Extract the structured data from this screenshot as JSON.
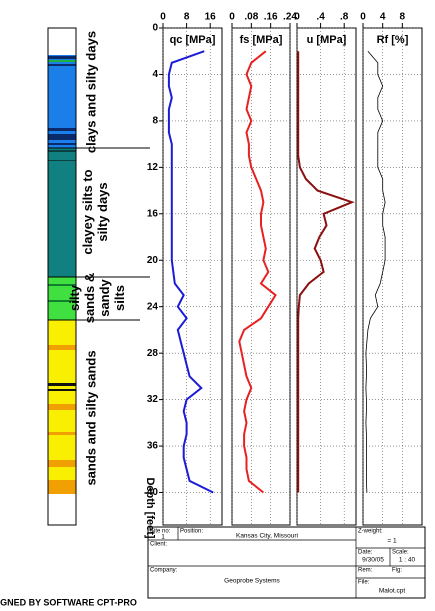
{
  "chart_data": {
    "type": "line",
    "depth_label": "Depth [feet]",
    "depth": [
      2,
      3,
      4,
      5,
      6,
      7,
      8,
      9,
      10,
      11,
      12,
      13,
      14,
      15,
      16,
      17,
      18,
      19,
      20,
      21,
      22,
      23,
      24,
      25,
      26,
      27,
      28,
      29,
      30,
      31,
      32,
      33,
      34,
      35,
      36,
      37,
      38,
      39,
      40
    ],
    "ylim": [
      0,
      42.8
    ],
    "yticks": [
      0,
      4,
      8,
      12,
      16,
      20,
      24,
      28,
      32,
      36,
      40
    ],
    "grid": true,
    "panels": [
      {
        "title": "qc [MPa]",
        "color": "#1c1cd8",
        "xlim": [
          0,
          20
        ],
        "xticks": [
          0,
          8,
          16
        ],
        "values": [
          14,
          3,
          2,
          2,
          3,
          2,
          2,
          2,
          3,
          3,
          3,
          3,
          3,
          3,
          3,
          3,
          3,
          3,
          3,
          3.5,
          4,
          7,
          5,
          8,
          5,
          6,
          7,
          8,
          9,
          13,
          8,
          7,
          8,
          8,
          7,
          7,
          8,
          9,
          17
        ]
      },
      {
        "title": "fs [MPa]",
        "color": "#e82020",
        "xlim": [
          0,
          0.24
        ],
        "xticks": [
          0,
          {
            "value": 0.08,
            "label": ".08"
          },
          {
            "value": 0.16,
            "label": ".16"
          },
          {
            "value": 0.24,
            "label": ".24"
          }
        ],
        "values": [
          0.14,
          0.08,
          0.06,
          0.08,
          0.07,
          0.06,
          0.08,
          0.06,
          0.07,
          0.07,
          0.08,
          0.1,
          0.12,
          0.13,
          0.12,
          0.12,
          0.13,
          0.14,
          0.13,
          0.15,
          0.12,
          0.18,
          0.15,
          0.12,
          0.05,
          0.03,
          0.04,
          0.05,
          0.06,
          0.08,
          0.06,
          0.05,
          0.06,
          0.05,
          0.05,
          0.06,
          0.06,
          0.07,
          0.13
        ]
      },
      {
        "title": "u [MPa]",
        "color": "#8b1010",
        "xlim": [
          0,
          1
        ],
        "xticks": [
          0,
          {
            "value": 0.4,
            "label": ".4"
          },
          {
            "value": 0.8,
            "label": ".8"
          }
        ],
        "values": [
          0.02,
          0.02,
          0.02,
          0.02,
          0.02,
          0.02,
          0.02,
          0.02,
          0.02,
          0.02,
          0.05,
          0.15,
          0.35,
          0.93,
          0.45,
          0.5,
          0.38,
          0.3,
          0.4,
          0.45,
          0.2,
          0.05,
          0.03,
          0.02,
          0.02,
          0.02,
          0.02,
          0.02,
          0.02,
          0.02,
          0.02,
          0.02,
          0.02,
          0.02,
          0.02,
          0.02,
          0.02,
          0.02,
          0.02
        ]
      },
      {
        "title": "Rf [%]",
        "color": "#000000",
        "xlim": [
          0,
          12
        ],
        "xticks": [
          0,
          4,
          8
        ],
        "values": [
          1,
          3,
          3,
          4,
          3,
          3,
          4,
          3,
          3,
          3,
          3,
          4,
          4,
          4.5,
          4,
          4,
          4.5,
          4.5,
          4.5,
          4,
          3.5,
          2.5,
          3,
          1.5,
          1,
          0.8,
          0.6,
          0.7,
          0.7,
          0.6,
          0.7,
          0.7,
          0.6,
          0.7,
          0.7,
          0.7,
          0.7,
          0.7,
          0.8
        ]
      }
    ]
  },
  "soil_labels": [
    [
      "clays and silty days"
    ],
    [
      "clayey silts to",
      "silty days"
    ],
    [
      "silty",
      "sands &",
      "sandy",
      "silts"
    ],
    [
      "sands and silty sands"
    ]
  ],
  "title_block": {
    "site_label": "Site no:",
    "site": "1",
    "position_label": "Position:",
    "position": "Kansas City, Missouri",
    "zweight_label": "Z-weight:",
    "zweight": "= 1",
    "client_label": "Client:",
    "date_label": "Date:",
    "date": "9/30/05",
    "scale_label": "Scale:",
    "scale": "1 : 40",
    "company_label": "Company:",
    "company": "Geoprobe Systems",
    "rem_label": "Rem:",
    "fig_label": "Fig:",
    "file_label": "File:",
    "file": "Malot.cpt"
  },
  "footer": "DESIGNED BY SOFTWARE CPT-PRO"
}
